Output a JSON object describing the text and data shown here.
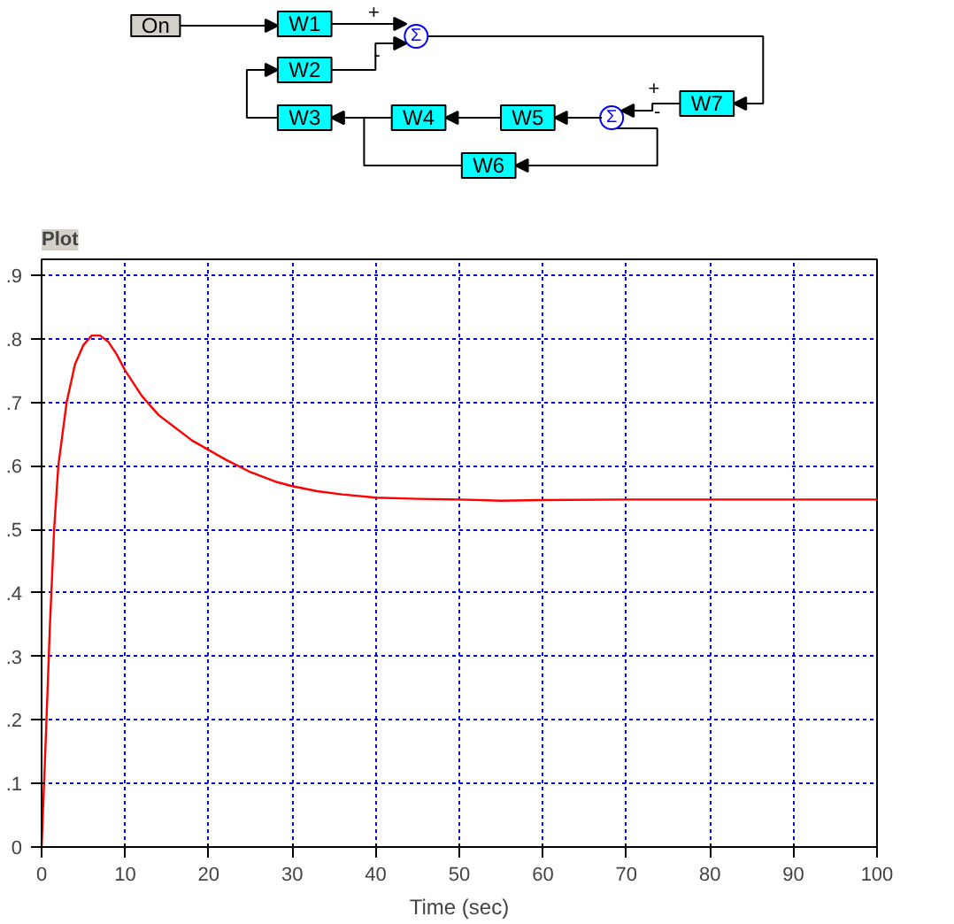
{
  "chart_data": {
    "type": "line",
    "title": "Plot",
    "xlabel": "Time (sec)",
    "annotations": [
      "On",
      "W1",
      "W2",
      "W3",
      "W4",
      "W5",
      "W6",
      "W7",
      "Σ",
      "Σ",
      "+",
      "-",
      "+",
      "-"
    ],
    "x": [
      0,
      0.5,
      1,
      1.5,
      2,
      3,
      4,
      5,
      6,
      7,
      8,
      9,
      10,
      12,
      14,
      16,
      18,
      20,
      22,
      25,
      28,
      30,
      33,
      36,
      40,
      45,
      50,
      55,
      60,
      70,
      80,
      90,
      100
    ],
    "series": [
      {
        "color": "#ff0000",
        "values": [
          0,
          0.17,
          0.35,
          0.5,
          0.6,
          0.7,
          0.76,
          0.79,
          0.805,
          0.805,
          0.795,
          0.775,
          0.75,
          0.71,
          0.68,
          0.66,
          0.64,
          0.625,
          0.61,
          0.59,
          0.575,
          0.568,
          0.56,
          0.555,
          0.55,
          0.548,
          0.547,
          0.545,
          0.546,
          0.547,
          0.547,
          0.547,
          0.547
        ]
      }
    ],
    "xlim": [
      0,
      100
    ],
    "xticks": [
      0,
      10,
      20,
      30,
      40,
      50,
      60,
      70,
      80,
      90,
      100
    ],
    "ylim": [
      0,
      0.925
    ],
    "yticks": [
      0,
      {
        "value": 0.1,
        "label": ".1"
      },
      {
        "value": 0.2,
        "label": ".2"
      },
      {
        "value": 0.3,
        "label": ".3"
      },
      {
        "value": 0.4,
        "label": ".4"
      },
      {
        "value": 0.5,
        "label": ".5"
      },
      {
        "value": 0.6,
        "label": ".6"
      },
      {
        "value": 0.7,
        "label": ".7"
      },
      {
        "value": 0.8,
        "label": ".8"
      },
      {
        "value": 0.9,
        "label": ".9"
      }
    ],
    "grid": true,
    "line_style": "solid",
    "marker": "none"
  }
}
